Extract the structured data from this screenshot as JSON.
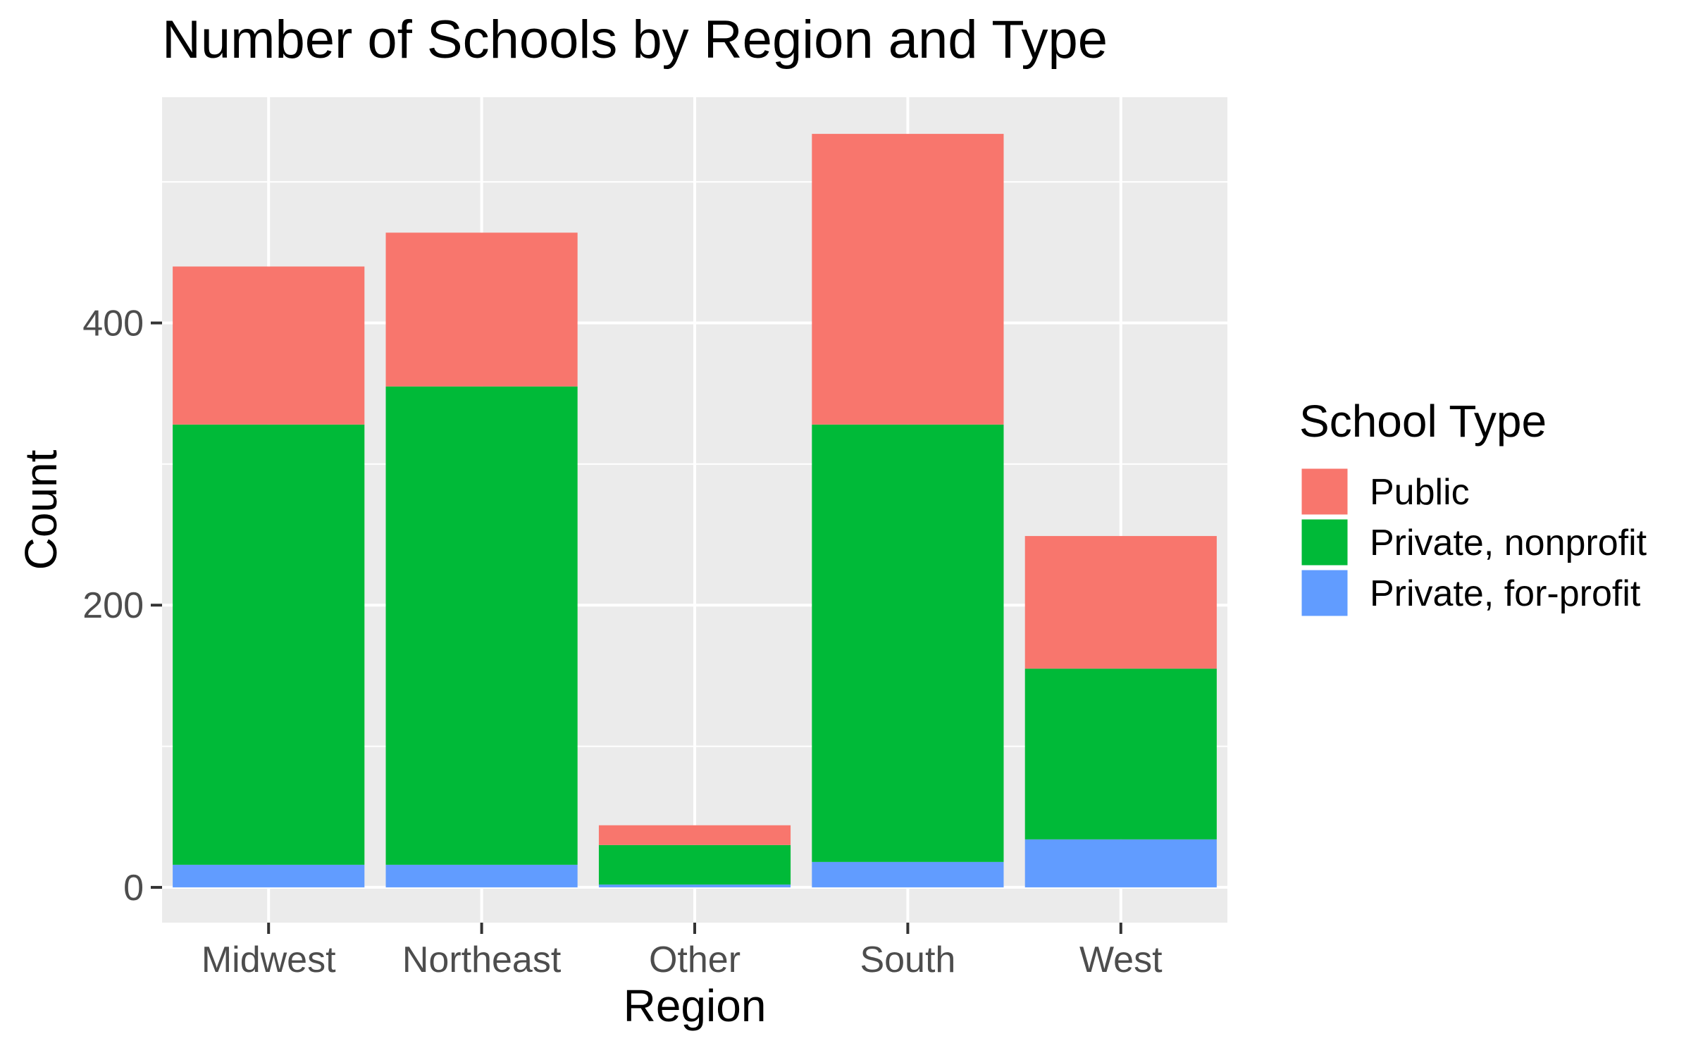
{
  "chart_data": {
    "type": "bar",
    "stacked": true,
    "title": "Number of Schools by Region and Type",
    "xlabel": "Region",
    "ylabel": "Count",
    "categories": [
      "Midwest",
      "Northeast",
      "Other",
      "South",
      "West"
    ],
    "ylim": [
      -25,
      560
    ],
    "yticks": [
      0,
      200,
      400
    ],
    "ytick_labels": [
      "0",
      "200",
      "400"
    ],
    "grid": true,
    "legend": {
      "title": "School Type",
      "position": "right"
    },
    "series": [
      {
        "name": "Private, for-profit",
        "color": "#619CFF",
        "values": [
          16,
          16,
          2,
          18,
          34
        ]
      },
      {
        "name": "Private, nonprofit",
        "color": "#00BA38",
        "values": [
          312,
          339,
          28,
          310,
          121
        ]
      },
      {
        "name": "Public",
        "color": "#F8766D",
        "values": [
          112,
          109,
          14,
          206,
          94
        ]
      }
    ],
    "legend_order": [
      "Public",
      "Private, nonprofit",
      "Private, for-profit"
    ]
  }
}
